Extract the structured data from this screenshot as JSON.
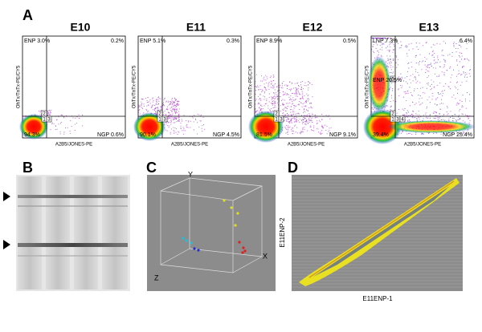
{
  "panel_a": {
    "label": "A",
    "y_axis": "OhTx/TnTx-PE/CY5",
    "x_axis": "A2B5/JONES-PE",
    "plots": [
      {
        "title": "E10",
        "top_left": "ENP 3.0%",
        "top_right": "0.2%",
        "bottom_left": "94.3%",
        "bottom_right": "NGP 0.6%",
        "gates": [
          "1",
          "2",
          "3"
        ]
      },
      {
        "title": "E11",
        "top_left": "ENP 5.1%",
        "top_right": "0.3%",
        "bottom_left": "90.1%",
        "bottom_right": "NGP 4.5%",
        "gates": [
          "1",
          "2",
          "3"
        ]
      },
      {
        "title": "E12",
        "top_left": "ENP 8.9%",
        "top_right": "0.5%",
        "bottom_left": "81.5%",
        "bottom_right": "NGP 9.1%",
        "gates": [
          "1",
          "2",
          "3"
        ]
      },
      {
        "title": "E13",
        "top_left": "LNP 7.3%",
        "top_right": "6.4%",
        "middle_left": "ENP 20.5%",
        "bottom_left": "39.4%",
        "bottom_right": "NGP 25.4%",
        "gates": [
          "1",
          "2",
          "3",
          "4",
          "5"
        ]
      }
    ]
  },
  "panel_b": {
    "label": "B"
  },
  "panel_c": {
    "label": "C",
    "axes": [
      "Y",
      "X",
      "Z"
    ]
  },
  "panel_d": {
    "label": "D",
    "y_axis": "E11ENP-2",
    "x_axis": "E11ENP-1"
  }
}
